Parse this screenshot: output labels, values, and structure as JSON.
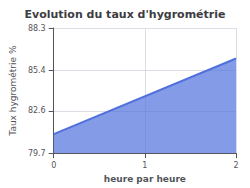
{
  "chart_data": {
    "type": "area",
    "title": "Evolution du taux d'hygrométrie",
    "xlabel": "heure par heure",
    "ylabel": "Taux hygrométrie %",
    "x": [
      0,
      2
    ],
    "values": [
      81.0,
      86.2
    ],
    "baseline": 79.7,
    "xlim": [
      0,
      2
    ],
    "xticks": [
      0,
      1,
      2
    ],
    "ylim": [
      79.7,
      88.3
    ],
    "yticks": [
      79.7,
      82.6,
      85.4,
      88.3
    ],
    "grid": true
  }
}
